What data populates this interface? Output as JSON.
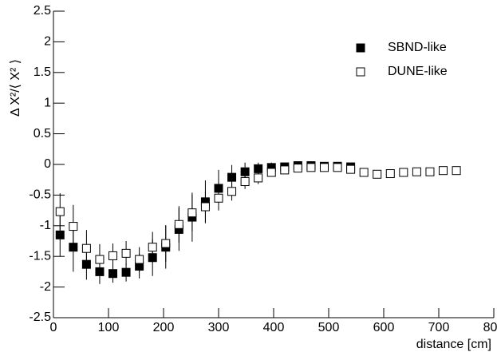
{
  "chart_data": {
    "type": "scatter",
    "x_label": "distance [cm]",
    "y_label": "Δ X²/⟨ X² ⟩",
    "xlim": [
      0,
      800
    ],
    "xticks": [
      0,
      100,
      200,
      300,
      400,
      500,
      600,
      700,
      800
    ],
    "ylim": [
      -2.5,
      2.5
    ],
    "yticks": [
      -2.5,
      -2,
      -1.5,
      -1,
      -0.5,
      0,
      0.5,
      1,
      1.5,
      2,
      2.5
    ],
    "legend": "top-right",
    "series": [
      {
        "name": "SBND-like",
        "color": "#000000",
        "marker": "filled",
        "x": [
          12,
          36,
          60,
          84,
          108,
          132,
          156,
          180,
          204,
          228,
          252,
          276,
          300,
          324,
          348,
          372,
          396,
          420,
          444,
          468,
          492,
          516,
          540
        ],
        "values": [
          -1.15,
          -1.35,
          -1.63,
          -1.75,
          -1.78,
          -1.76,
          -1.66,
          -1.52,
          -1.35,
          -1.06,
          -0.86,
          -0.61,
          -0.39,
          -0.21,
          -0.12,
          -0.07,
          -0.05,
          -0.04,
          -0.02,
          -0.02,
          -0.03,
          -0.03,
          -0.04
        ],
        "errors": [
          0.35,
          0.4,
          0.25,
          0.2,
          0.15,
          0.15,
          0.2,
          0.3,
          0.35,
          0.35,
          0.4,
          0.35,
          0.3,
          0.2,
          0.15,
          0.1,
          0.08,
          0.05,
          0.05,
          0.04,
          0.04,
          0.04,
          0.04
        ]
      },
      {
        "name": "DUNE-like",
        "color": "#000000",
        "marker": "open",
        "x": [
          12,
          36,
          60,
          84,
          108,
          132,
          156,
          180,
          204,
          228,
          252,
          276,
          300,
          324,
          348,
          372,
          396,
          420,
          444,
          468,
          492,
          516,
          540,
          564,
          588,
          612,
          636,
          660,
          684,
          708,
          732
        ],
        "values": [
          -0.77,
          -1.01,
          -1.37,
          -1.55,
          -1.49,
          -1.45,
          -1.55,
          -1.35,
          -1.29,
          -0.98,
          -0.79,
          -0.69,
          -0.55,
          -0.44,
          -0.28,
          -0.22,
          -0.13,
          -0.09,
          -0.06,
          -0.05,
          -0.05,
          -0.05,
          -0.08,
          -0.13,
          -0.16,
          -0.15,
          -0.13,
          -0.12,
          -0.12,
          -0.1,
          -0.1
        ],
        "errors": [
          0.3,
          0.35,
          0.3,
          0.25,
          0.2,
          0.2,
          0.2,
          0.25,
          0.3,
          0.3,
          0.3,
          0.25,
          0.2,
          0.15,
          0.12,
          0.1,
          0.06,
          0.05,
          0.04,
          0.03,
          0.03,
          0.03,
          0.03,
          0.03,
          0.03,
          0.03,
          0.03,
          0.03,
          0.03,
          0.03,
          0.03
        ]
      }
    ]
  }
}
